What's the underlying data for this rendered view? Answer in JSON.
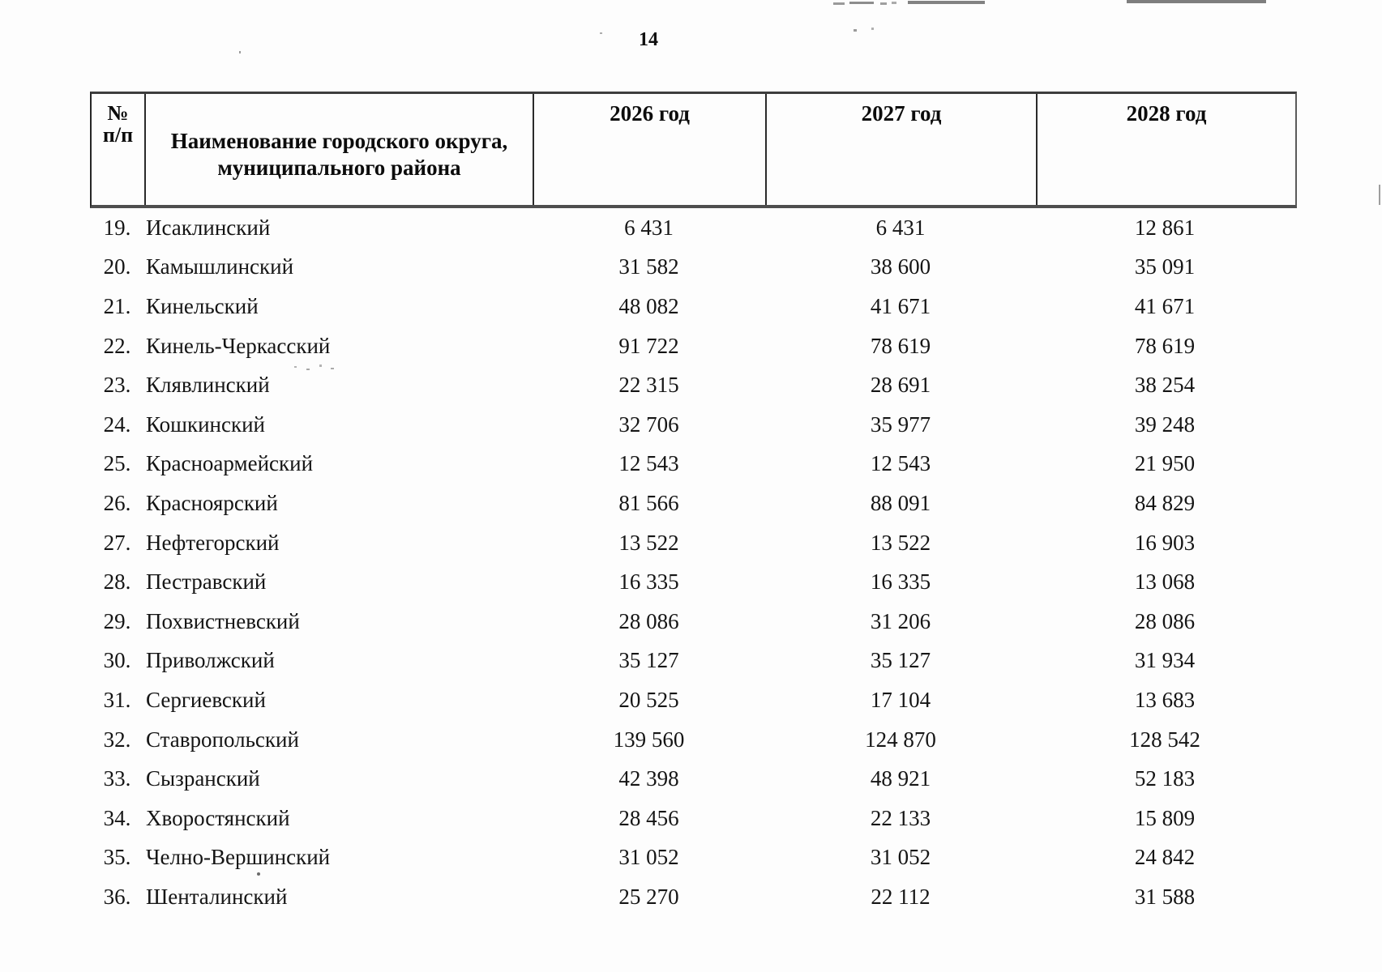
{
  "page": {
    "number": "14"
  },
  "table": {
    "header": {
      "index_line1": "№",
      "index_line2": "п/п",
      "name": "Наименование городского округа, муниципального района",
      "year1": "2026 год",
      "year2": "2027 год",
      "year3": "2028 год"
    },
    "rows": [
      {
        "n": "19.",
        "name": "Исаклинский",
        "y2026": "6 431",
        "y2027": "6 431",
        "y2028": "12 861"
      },
      {
        "n": "20.",
        "name": "Камышлинский",
        "y2026": "31 582",
        "y2027": "38 600",
        "y2028": "35 091"
      },
      {
        "n": "21.",
        "name": "Кинельский",
        "y2026": "48 082",
        "y2027": "41 671",
        "y2028": "41 671"
      },
      {
        "n": "22.",
        "name": "Кинель-Черкасский",
        "y2026": "91 722",
        "y2027": "78 619",
        "y2028": "78 619"
      },
      {
        "n": "23.",
        "name": "Клявлинский",
        "y2026": "22 315",
        "y2027": "28 691",
        "y2028": "38 254"
      },
      {
        "n": "24.",
        "name": "Кошкинский",
        "y2026": "32 706",
        "y2027": "35 977",
        "y2028": "39 248"
      },
      {
        "n": "25.",
        "name": "Красноармейский",
        "y2026": "12 543",
        "y2027": "12 543",
        "y2028": "21 950"
      },
      {
        "n": "26.",
        "name": "Красноярский",
        "y2026": "81 566",
        "y2027": "88 091",
        "y2028": "84 829"
      },
      {
        "n": "27.",
        "name": "Нефтегорский",
        "y2026": "13 522",
        "y2027": "13 522",
        "y2028": "16 903"
      },
      {
        "n": "28.",
        "name": "Пестравский",
        "y2026": "16 335",
        "y2027": "16 335",
        "y2028": "13 068"
      },
      {
        "n": "29.",
        "name": "Похвистневский",
        "y2026": "28 086",
        "y2027": "31 206",
        "y2028": "28 086"
      },
      {
        "n": "30.",
        "name": "Приволжский",
        "y2026": "35 127",
        "y2027": "35 127",
        "y2028": "31 934"
      },
      {
        "n": "31.",
        "name": "Сергиевский",
        "y2026": "20 525",
        "y2027": "17 104",
        "y2028": "13 683"
      },
      {
        "n": "32.",
        "name": "Ставропольский",
        "y2026": "139 560",
        "y2027": "124 870",
        "y2028": "128 542"
      },
      {
        "n": "33.",
        "name": "Сызранский",
        "y2026": "42 398",
        "y2027": "48 921",
        "y2028": "52 183"
      },
      {
        "n": "34.",
        "name": "Хворостянский",
        "y2026": "28 456",
        "y2027": "22 133",
        "y2028": "15 809"
      },
      {
        "n": "35.",
        "name": "Челно-Вершинский",
        "y2026": "31 052",
        "y2027": "31 052",
        "y2028": "24 842"
      },
      {
        "n": "36.",
        "name": "Шенталинский",
        "y2026": "25 270",
        "y2027": "22 112",
        "y2028": "31 588"
      }
    ]
  }
}
